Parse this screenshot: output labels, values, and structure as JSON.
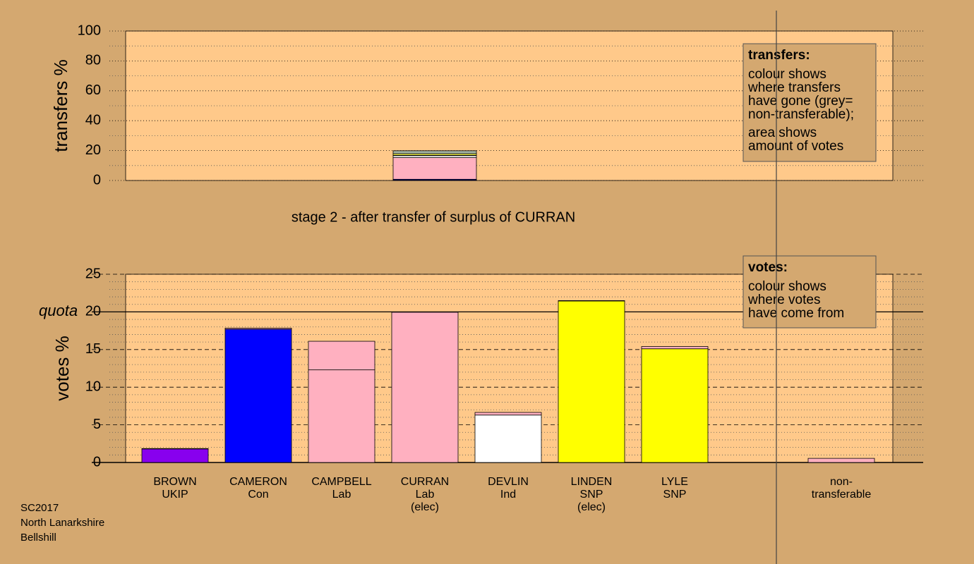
{
  "chart_data": [
    {
      "type": "stacked-bar",
      "ylabel": "transfers %",
      "ylim": [
        0,
        100
      ],
      "yticks": [
        0,
        20,
        40,
        60,
        80,
        100
      ],
      "minor_yticks": [
        10,
        30,
        50,
        70,
        90
      ],
      "grid": true,
      "caption": "stage 2 - after transfer of surplus of CURRAN",
      "series": [
        {
          "color": "#8800ee",
          "values": [
            0.2
          ]
        },
        {
          "color": "#0000ff",
          "values": [
            0.6
          ]
        },
        {
          "color": "#ffb0c0",
          "values": [
            14.5
          ]
        },
        {
          "color": "#ffffff",
          "values": [
            1.3
          ]
        },
        {
          "color": "#ffff00",
          "values": [
            0.2
          ]
        },
        {
          "color": "#eeee44",
          "values": [
            1.1
          ]
        },
        {
          "color": "#a0b0a0",
          "values": [
            2.0
          ]
        }
      ],
      "annotation": {
        "heading": "transfers:",
        "paragraphs": [
          [
            "colour shows",
            "where transfers",
            "have gone (grey=",
            "non-transferable);"
          ],
          [
            "area shows",
            "amount of votes"
          ]
        ]
      }
    },
    {
      "type": "stacked-bar",
      "ylabel": "votes %",
      "ylim": [
        0,
        25
      ],
      "yticks": [
        0,
        5,
        10,
        15,
        20,
        25
      ],
      "minor_yticks": [
        1,
        2,
        3,
        4,
        6,
        7,
        8,
        9,
        11,
        12,
        13,
        14,
        16,
        17,
        18,
        19,
        21,
        22,
        23,
        24
      ],
      "grid": true,
      "quota": {
        "value": 20,
        "label": "quota"
      },
      "categories": [
        [
          "BROWN",
          "UKIP"
        ],
        [
          "CAMERON",
          "Con"
        ],
        [
          "CAMPBELL",
          "Lab"
        ],
        [
          "CURRAN",
          "Lab",
          "(elec)"
        ],
        [
          "DEVLIN",
          "Ind"
        ],
        [
          "LINDEN",
          "SNP",
          "(elec)"
        ],
        [
          "LYLE",
          "SNP"
        ],
        null,
        [
          "non-",
          "transferable"
        ]
      ],
      "series": [
        {
          "colors": [
            "#8800ee",
            "#0000ff",
            "#ffb0c0",
            "#ffb0c0",
            "#ffffff",
            "#ffff00",
            "#ffff00",
            null,
            "#ffb0c0"
          ],
          "values": [
            1.8,
            17.7,
            12.3,
            19.95,
            6.3,
            21.45,
            15.1,
            null,
            0
          ]
        },
        {
          "color": "#ffb0c0",
          "values": [
            0.05,
            0.15,
            3.8,
            null,
            0.35,
            0.05,
            0.3,
            null,
            0.55
          ]
        }
      ],
      "annotation": {
        "heading": "votes:",
        "paragraphs": [
          [
            "colour shows",
            "where votes",
            "have come from"
          ]
        ]
      }
    }
  ],
  "footer": [
    "SC2017",
    "North Lanarkshire",
    "Bellshill"
  ]
}
